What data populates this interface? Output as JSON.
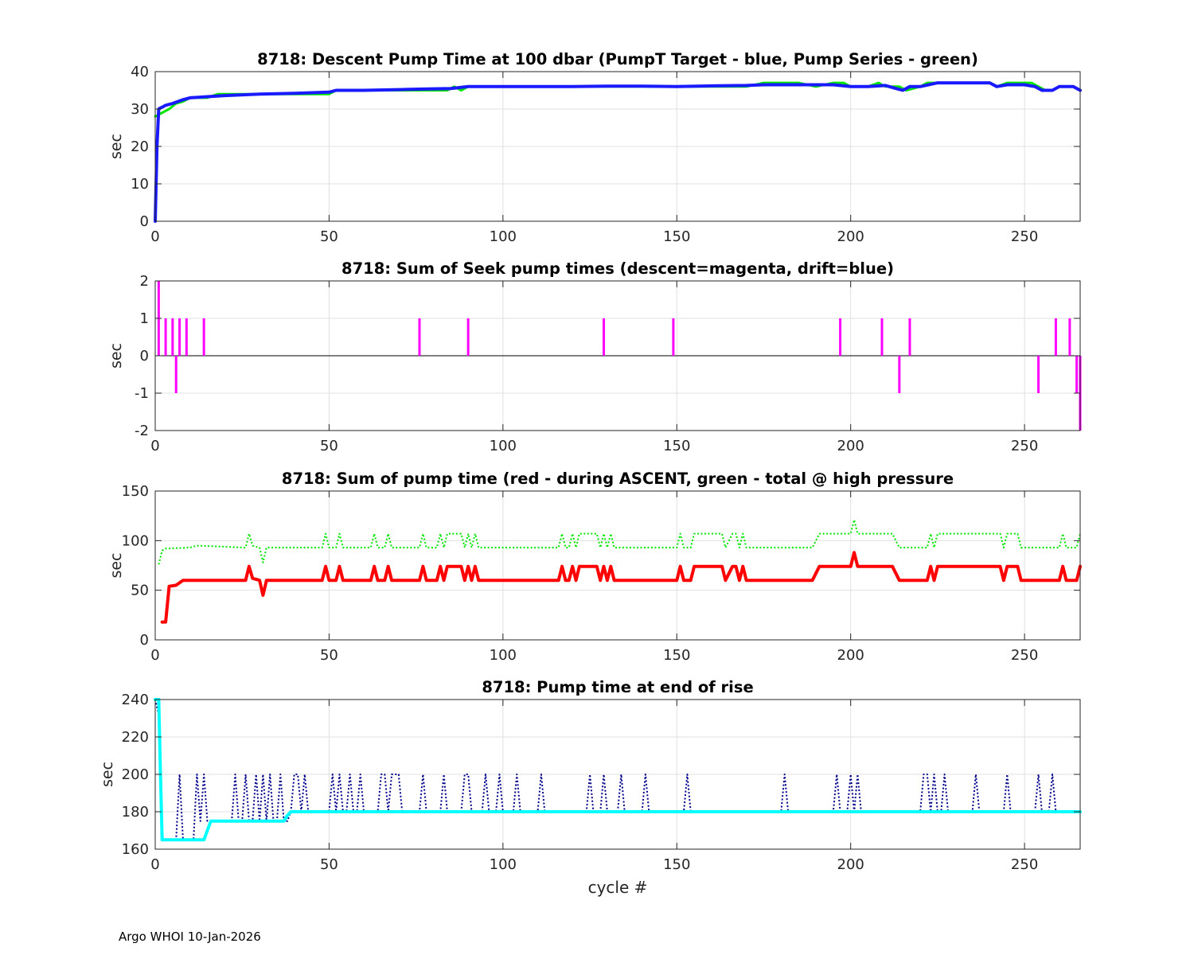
{
  "figure": {
    "xlabel": "cycle #",
    "footer": "Argo WHOI 10-Jan-2026"
  },
  "colors": {
    "green": "#00e600",
    "blue": "#1a1aff",
    "magenta": "#ff00ff",
    "red": "#ff0000",
    "cyan": "#00ffff",
    "navy": "#00008b",
    "grid": "#e0e0e0",
    "axis": "#262626"
  },
  "chart_data": [
    {
      "type": "line",
      "title": "8718: Descent Pump Time at 100 dbar (PumpT Target - blue, Pump Series - green)",
      "ylabel": "sec",
      "xlim": [
        0,
        266
      ],
      "ylim": [
        0,
        40
      ],
      "xticks": [
        0,
        50,
        100,
        150,
        200,
        250
      ],
      "yticks": [
        0,
        10,
        20,
        30,
        40
      ],
      "grid": true,
      "series": [
        {
          "color": "green",
          "style": "solid",
          "width": 3,
          "x": [
            0,
            1,
            2,
            3,
            4,
            6,
            8,
            10,
            12,
            15,
            18,
            20,
            25,
            30,
            35,
            40,
            45,
            50,
            52,
            55,
            60,
            70,
            80,
            84,
            86,
            88,
            90,
            95,
            100,
            110,
            120,
            130,
            140,
            150,
            160,
            170,
            175,
            180,
            185,
            190,
            195,
            198,
            200,
            205,
            208,
            210,
            212,
            214,
            216,
            220,
            222,
            225,
            230,
            235,
            240,
            242,
            245,
            250,
            252,
            254,
            256,
            258,
            260,
            262,
            264,
            266
          ],
          "y": [
            28,
            28.5,
            29,
            29.5,
            30,
            31.5,
            32,
            33,
            33,
            33,
            34,
            34,
            34,
            34,
            34,
            34,
            34,
            34,
            35,
            35,
            35,
            35,
            35,
            35,
            36,
            35,
            36,
            36,
            36,
            36,
            36,
            36,
            36,
            36,
            36,
            36,
            37,
            37,
            37,
            36,
            37,
            37,
            36,
            36,
            37,
            36,
            36,
            36,
            35,
            36,
            37,
            37,
            37,
            37,
            37,
            36,
            37,
            37,
            37,
            36,
            35,
            35,
            36,
            36,
            36,
            35
          ]
        },
        {
          "color": "blue",
          "style": "solid",
          "width": 4,
          "x": [
            0,
            0.5,
            1,
            1.5,
            2,
            3,
            5,
            8,
            10,
            15,
            20,
            30,
            40,
            50,
            52,
            60,
            70,
            80,
            85,
            90,
            95,
            100,
            110,
            120,
            130,
            140,
            150,
            160,
            170,
            175,
            180,
            185,
            190,
            195,
            200,
            205,
            210,
            213,
            215,
            217,
            220,
            225,
            230,
            240,
            242,
            245,
            250,
            253,
            255,
            258,
            260,
            264,
            266
          ],
          "y": [
            0,
            20,
            30,
            30.3,
            30.5,
            31,
            31.5,
            32.5,
            33,
            33.3,
            33.6,
            34,
            34.2,
            34.5,
            35,
            35,
            35.2,
            35.4,
            35.5,
            36,
            36,
            36,
            36,
            36,
            36.1,
            36.1,
            36,
            36.2,
            36.3,
            36.5,
            36.5,
            36.5,
            36.5,
            36.5,
            36,
            36,
            36.3,
            35.5,
            35,
            36,
            36,
            37,
            37,
            37,
            36,
            36.5,
            36.5,
            36,
            35,
            35,
            36,
            36,
            35
          ]
        }
      ]
    },
    {
      "type": "bar",
      "title": "8718: Sum of Seek pump times (descent=magenta, drift=blue)",
      "ylabel": "sec",
      "xlim": [
        0,
        266
      ],
      "ylim": [
        -2,
        2
      ],
      "xticks": [
        0,
        50,
        100,
        150,
        200,
        250
      ],
      "yticks": [
        -2,
        -1,
        0,
        1,
        2
      ],
      "grid": true,
      "series": [
        {
          "color": "magenta",
          "x": [
            1,
            3,
            5,
            6,
            7,
            9,
            14,
            76,
            90,
            129,
            149,
            197,
            209,
            214,
            217,
            254,
            259,
            263,
            265,
            266
          ],
          "y": [
            2,
            1,
            1,
            -1,
            1,
            1,
            1,
            1,
            1,
            1,
            1,
            1,
            1,
            -1,
            1,
            -1,
            1,
            1,
            -1,
            -2
          ]
        }
      ]
    },
    {
      "type": "line",
      "title": "8718: Sum of pump time (red - during ASCENT, green - total @ high pressure",
      "ylabel": "sec",
      "xlim": [
        0,
        266
      ],
      "ylim": [
        0,
        150
      ],
      "xticks": [
        0,
        50,
        100,
        150,
        200,
        250
      ],
      "yticks": [
        0,
        50,
        100,
        150
      ],
      "grid": true,
      "series": [
        {
          "color": "red",
          "style": "solid",
          "width": 4,
          "x": [
            2,
            3,
            4,
            6,
            8,
            26,
            27,
            28,
            30,
            31,
            32,
            48,
            49,
            50,
            52,
            53,
            54,
            62,
            63,
            64,
            66,
            67,
            68,
            76,
            77,
            78,
            81,
            82,
            83,
            84,
            85,
            88,
            89,
            90,
            91,
            92,
            93,
            94,
            116,
            117,
            118,
            119,
            120,
            121,
            122,
            127,
            128,
            129,
            130,
            131,
            132,
            133,
            150,
            151,
            152,
            154,
            155,
            163,
            164,
            166,
            167,
            168,
            169,
            170,
            189,
            191,
            200,
            201,
            202,
            212,
            214,
            222,
            223,
            224,
            225,
            227,
            243,
            244,
            245,
            248,
            249,
            260,
            261,
            262,
            265,
            266
          ],
          "y": [
            18,
            18,
            54,
            55,
            60,
            60,
            74,
            62,
            60,
            45,
            60,
            60,
            74,
            60,
            60,
            74,
            60,
            60,
            74,
            60,
            60,
            74,
            60,
            60,
            74,
            60,
            60,
            74,
            60,
            74,
            74,
            74,
            60,
            74,
            60,
            74,
            60,
            60,
            60,
            74,
            60,
            60,
            74,
            60,
            74,
            74,
            60,
            74,
            60,
            74,
            60,
            60,
            60,
            74,
            60,
            60,
            74,
            74,
            60,
            74,
            74,
            60,
            74,
            60,
            60,
            74,
            74,
            88,
            74,
            74,
            60,
            60,
            74,
            60,
            74,
            74,
            74,
            60,
            74,
            74,
            60,
            60,
            74,
            60,
            60,
            74
          ]
        },
        {
          "color": "green",
          "style": "dotted",
          "width": 2,
          "x": [
            1,
            2,
            3,
            10,
            12,
            26,
            27,
            28,
            30,
            31,
            32,
            48,
            49,
            50,
            52,
            53,
            54,
            62,
            63,
            64,
            66,
            67,
            68,
            76,
            77,
            78,
            81,
            82,
            83,
            84,
            85,
            88,
            89,
            90,
            91,
            92,
            93,
            94,
            116,
            117,
            118,
            119,
            120,
            121,
            122,
            127,
            128,
            129,
            130,
            131,
            132,
            133,
            150,
            151,
            152,
            154,
            155,
            163,
            164,
            166,
            167,
            168,
            169,
            170,
            189,
            191,
            200,
            201,
            202,
            212,
            214,
            222,
            223,
            224,
            225,
            227,
            243,
            244,
            245,
            248,
            249,
            260,
            261,
            262,
            265,
            266
          ],
          "y": [
            76,
            90,
            92,
            93,
            95,
            93,
            107,
            95,
            93,
            78,
            93,
            93,
            107,
            93,
            93,
            107,
            93,
            93,
            107,
            93,
            93,
            107,
            93,
            93,
            107,
            93,
            93,
            107,
            93,
            107,
            107,
            107,
            93,
            107,
            93,
            107,
            93,
            93,
            93,
            107,
            93,
            93,
            107,
            93,
            107,
            107,
            93,
            107,
            93,
            107,
            93,
            93,
            93,
            107,
            93,
            93,
            107,
            107,
            93,
            107,
            107,
            93,
            107,
            93,
            93,
            107,
            107,
            121,
            107,
            107,
            93,
            93,
            107,
            93,
            107,
            107,
            107,
            93,
            107,
            107,
            93,
            93,
            107,
            93,
            93,
            107
          ]
        }
      ]
    },
    {
      "type": "line",
      "title": "8718: Pump time at end of rise",
      "ylabel": "sec",
      "xlim": [
        0,
        266
      ],
      "ylim": [
        160,
        240
      ],
      "xticks": [
        0,
        50,
        100,
        150,
        200,
        250
      ],
      "yticks": [
        160,
        180,
        200,
        220,
        240
      ],
      "grid": true,
      "series": [
        {
          "color": "navy",
          "style": "dotted",
          "width": 2,
          "x": [
            0,
            1,
            2,
            6,
            7,
            8,
            11,
            12,
            13,
            14,
            15,
            22,
            23,
            24,
            25,
            26,
            27,
            28,
            29,
            30,
            31,
            32,
            33,
            34,
            35,
            36,
            37,
            38,
            39,
            40,
            41,
            42,
            43,
            44,
            45,
            50,
            51,
            52,
            53,
            54,
            55,
            56,
            57,
            58,
            59,
            60,
            61,
            64,
            65,
            66,
            67,
            68,
            70,
            71,
            76,
            77,
            78,
            82,
            83,
            84,
            88,
            89,
            90,
            91,
            92,
            94,
            95,
            96,
            98,
            99,
            100,
            103,
            104,
            105,
            110,
            111,
            112,
            124,
            125,
            126,
            128,
            129,
            130,
            133,
            134,
            135,
            140,
            141,
            142,
            152,
            153,
            154,
            180,
            181,
            182,
            195,
            196,
            197,
            199,
            200,
            201,
            202,
            203,
            220,
            221,
            222,
            223,
            224,
            225,
            226,
            227,
            228,
            229,
            235,
            236,
            237,
            244,
            245,
            246,
            253,
            254,
            255,
            257,
            258,
            259
          ],
          "y": [
            240,
            232,
            165,
            165,
            200,
            165,
            165,
            200,
            175,
            200,
            175,
            175,
            200,
            175,
            175,
            200,
            175,
            175,
            200,
            175,
            200,
            175,
            200,
            175,
            175,
            200,
            175,
            175,
            180,
            200,
            200,
            180,
            200,
            180,
            180,
            180,
            200,
            180,
            200,
            180,
            180,
            200,
            180,
            180,
            200,
            180,
            180,
            180,
            200,
            200,
            180,
            200,
            200,
            180,
            180,
            200,
            180,
            180,
            200,
            180,
            180,
            200,
            200,
            180,
            180,
            180,
            200,
            180,
            180,
            200,
            180,
            180,
            200,
            180,
            180,
            200,
            180,
            180,
            200,
            180,
            180,
            200,
            180,
            180,
            200,
            180,
            180,
            200,
            180,
            180,
            200,
            180,
            180,
            200,
            180,
            180,
            200,
            180,
            180,
            200,
            180,
            200,
            180,
            180,
            200,
            200,
            180,
            200,
            180,
            180,
            200,
            180,
            180,
            180,
            200,
            180,
            180,
            200,
            180,
            180,
            200,
            180,
            180,
            200,
            180
          ]
        },
        {
          "color": "cyan",
          "style": "solid",
          "width": 4,
          "x": [
            0,
            1,
            1.5,
            2,
            3,
            14,
            15,
            16,
            37,
            38,
            39,
            266
          ],
          "y": [
            240,
            240,
            200,
            165,
            165,
            165,
            170,
            175,
            175,
            178,
            180,
            180
          ]
        }
      ]
    }
  ]
}
